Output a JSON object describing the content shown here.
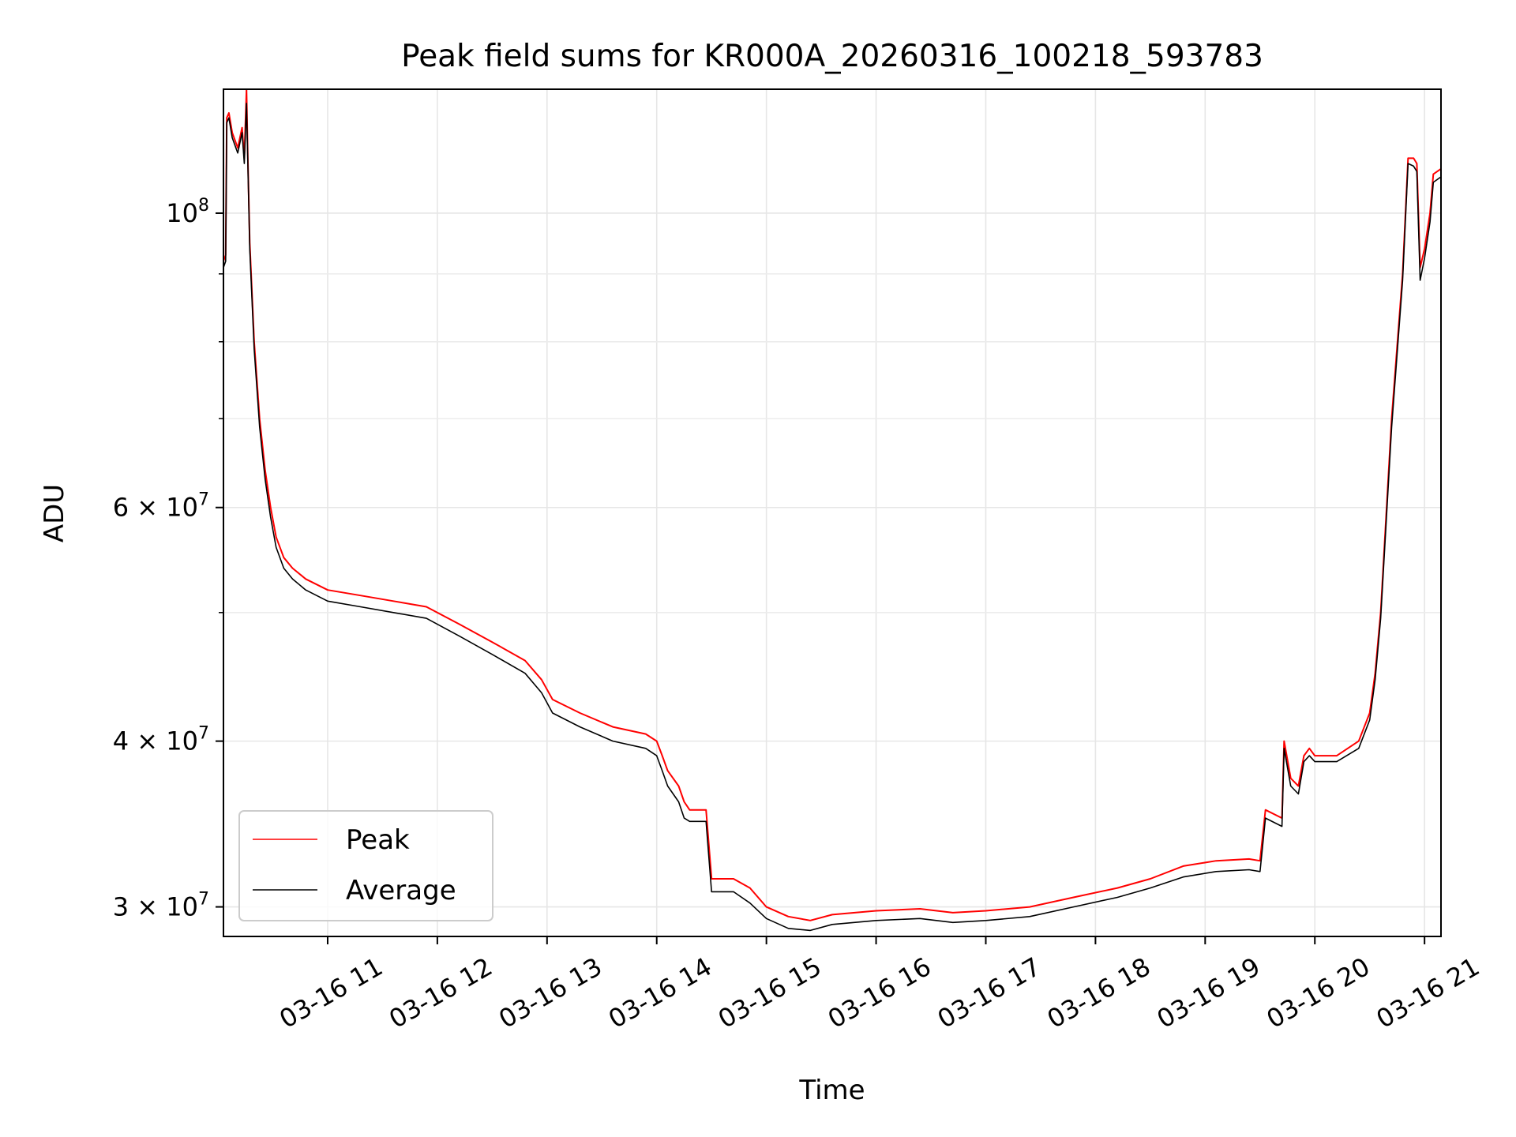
{
  "chart_data": {
    "type": "line",
    "title": "Peak field sums for KR000A_20260316_100218_593783",
    "xlabel": "Time",
    "ylabel": "ADU",
    "yscale": "log",
    "xlim": [
      10.05,
      21.15
    ],
    "ylim": [
      28500000,
      124000000
    ],
    "grid": true,
    "legend_position": "lower-left",
    "x_unit": "hours on 03-16",
    "x_ticks": [
      {
        "value": 11,
        "label": "03-16 11"
      },
      {
        "value": 12,
        "label": "03-16 12"
      },
      {
        "value": 13,
        "label": "03-16 13"
      },
      {
        "value": 14,
        "label": "03-16 14"
      },
      {
        "value": 15,
        "label": "03-16 15"
      },
      {
        "value": 16,
        "label": "03-16 16"
      },
      {
        "value": 17,
        "label": "03-16 17"
      },
      {
        "value": 18,
        "label": "03-16 18"
      },
      {
        "value": 19,
        "label": "03-16 19"
      },
      {
        "value": 20,
        "label": "03-16 20"
      },
      {
        "value": 21,
        "label": "03-16 21"
      }
    ],
    "y_major_ticks": [
      {
        "value": 30000000,
        "base": "3 × 10",
        "exp": "7"
      },
      {
        "value": 40000000,
        "base": "4 × 10",
        "exp": "7"
      },
      {
        "value": 60000000,
        "base": "6 × 10",
        "exp": "7"
      },
      {
        "value": 100000000,
        "base": "10",
        "exp": "8"
      }
    ],
    "y_minor_ticks": [
      50000000,
      70000000,
      80000000,
      90000000
    ],
    "series": [
      {
        "name": "Peak",
        "color": "#ff0000",
        "x": [
          10.05,
          10.07,
          10.08,
          10.1,
          10.13,
          10.18,
          10.22,
          10.24,
          10.26,
          10.27,
          10.29,
          10.33,
          10.38,
          10.43,
          10.48,
          10.53,
          10.6,
          10.68,
          10.8,
          11.0,
          11.3,
          11.6,
          11.9,
          12.2,
          12.5,
          12.8,
          12.95,
          13.05,
          13.3,
          13.6,
          13.9,
          14.0,
          14.05,
          14.1,
          14.2,
          14.25,
          14.3,
          14.45,
          14.5,
          14.7,
          14.85,
          15.0,
          15.2,
          15.4,
          15.6,
          16.0,
          16.4,
          16.7,
          17.0,
          17.4,
          17.8,
          18.2,
          18.5,
          18.8,
          19.1,
          19.4,
          19.5,
          19.55,
          19.7,
          19.72,
          19.78,
          19.85,
          19.9,
          19.95,
          20.0,
          20.2,
          20.4,
          20.5,
          20.55,
          20.6,
          20.7,
          20.8,
          20.85,
          20.9,
          20.93,
          20.96,
          21.0,
          21.05,
          21.08,
          21.15
        ],
        "y": [
          92000000,
          93000000,
          118000000,
          119000000,
          115000000,
          112000000,
          116000000,
          110000000,
          124000000,
          112000000,
          95000000,
          80000000,
          70000000,
          64000000,
          60000000,
          57000000,
          55000000,
          54000000,
          53000000,
          52000000,
          51500000,
          51000000,
          50500000,
          49000000,
          47500000,
          46000000,
          44500000,
          43000000,
          42000000,
          41000000,
          40500000,
          40000000,
          39000000,
          38000000,
          37000000,
          36000000,
          35500000,
          35500000,
          31500000,
          31500000,
          31000000,
          30000000,
          29500000,
          29300000,
          29600000,
          29800000,
          29900000,
          29700000,
          29800000,
          30000000,
          30500000,
          31000000,
          31500000,
          32200000,
          32500000,
          32600000,
          32500000,
          35500000,
          35000000,
          40000000,
          37500000,
          37000000,
          39000000,
          39500000,
          39000000,
          39000000,
          40000000,
          42000000,
          45000000,
          50000000,
          70000000,
          90000000,
          110000000,
          110000000,
          109000000,
          91000000,
          94000000,
          100000000,
          107000000,
          108000000
        ]
      },
      {
        "name": "Average",
        "color": "#000000",
        "x": [
          10.05,
          10.07,
          10.08,
          10.1,
          10.13,
          10.18,
          10.22,
          10.24,
          10.26,
          10.27,
          10.29,
          10.33,
          10.38,
          10.43,
          10.48,
          10.53,
          10.6,
          10.68,
          10.8,
          11.0,
          11.3,
          11.6,
          11.9,
          12.2,
          12.5,
          12.8,
          12.95,
          13.05,
          13.3,
          13.6,
          13.9,
          14.0,
          14.05,
          14.1,
          14.2,
          14.25,
          14.3,
          14.45,
          14.5,
          14.7,
          14.85,
          15.0,
          15.2,
          15.4,
          15.6,
          16.0,
          16.4,
          16.7,
          17.0,
          17.4,
          17.8,
          18.2,
          18.5,
          18.8,
          19.1,
          19.4,
          19.5,
          19.55,
          19.7,
          19.72,
          19.78,
          19.85,
          19.9,
          19.95,
          20.0,
          20.2,
          20.4,
          20.5,
          20.55,
          20.6,
          20.7,
          20.8,
          20.85,
          20.9,
          20.93,
          20.96,
          21.0,
          21.05,
          21.08,
          21.15
        ],
        "y": [
          91000000,
          92000000,
          117000000,
          118000000,
          114000000,
          111000000,
          115000000,
          109000000,
          121000000,
          111000000,
          94000000,
          79000000,
          69000000,
          63000000,
          59000000,
          56000000,
          54000000,
          53000000,
          52000000,
          51000000,
          50500000,
          50000000,
          49500000,
          48000000,
          46500000,
          45000000,
          43500000,
          42000000,
          41000000,
          40000000,
          39500000,
          39000000,
          38000000,
          37000000,
          36000000,
          35000000,
          34800000,
          34800000,
          30800000,
          30800000,
          30200000,
          29400000,
          28900000,
          28800000,
          29100000,
          29300000,
          29400000,
          29200000,
          29300000,
          29500000,
          30000000,
          30500000,
          31000000,
          31600000,
          31900000,
          32000000,
          31900000,
          35000000,
          34500000,
          39500000,
          37000000,
          36500000,
          38600000,
          39000000,
          38600000,
          38600000,
          39500000,
          41500000,
          44500000,
          49500000,
          69000000,
          89000000,
          109000000,
          108500000,
          107500000,
          89000000,
          92500000,
          98500000,
          105500000,
          106500000
        ]
      }
    ],
    "legend": [
      {
        "label": "Peak",
        "color": "#ff0000"
      },
      {
        "label": "Average",
        "color": "#000000"
      }
    ]
  }
}
